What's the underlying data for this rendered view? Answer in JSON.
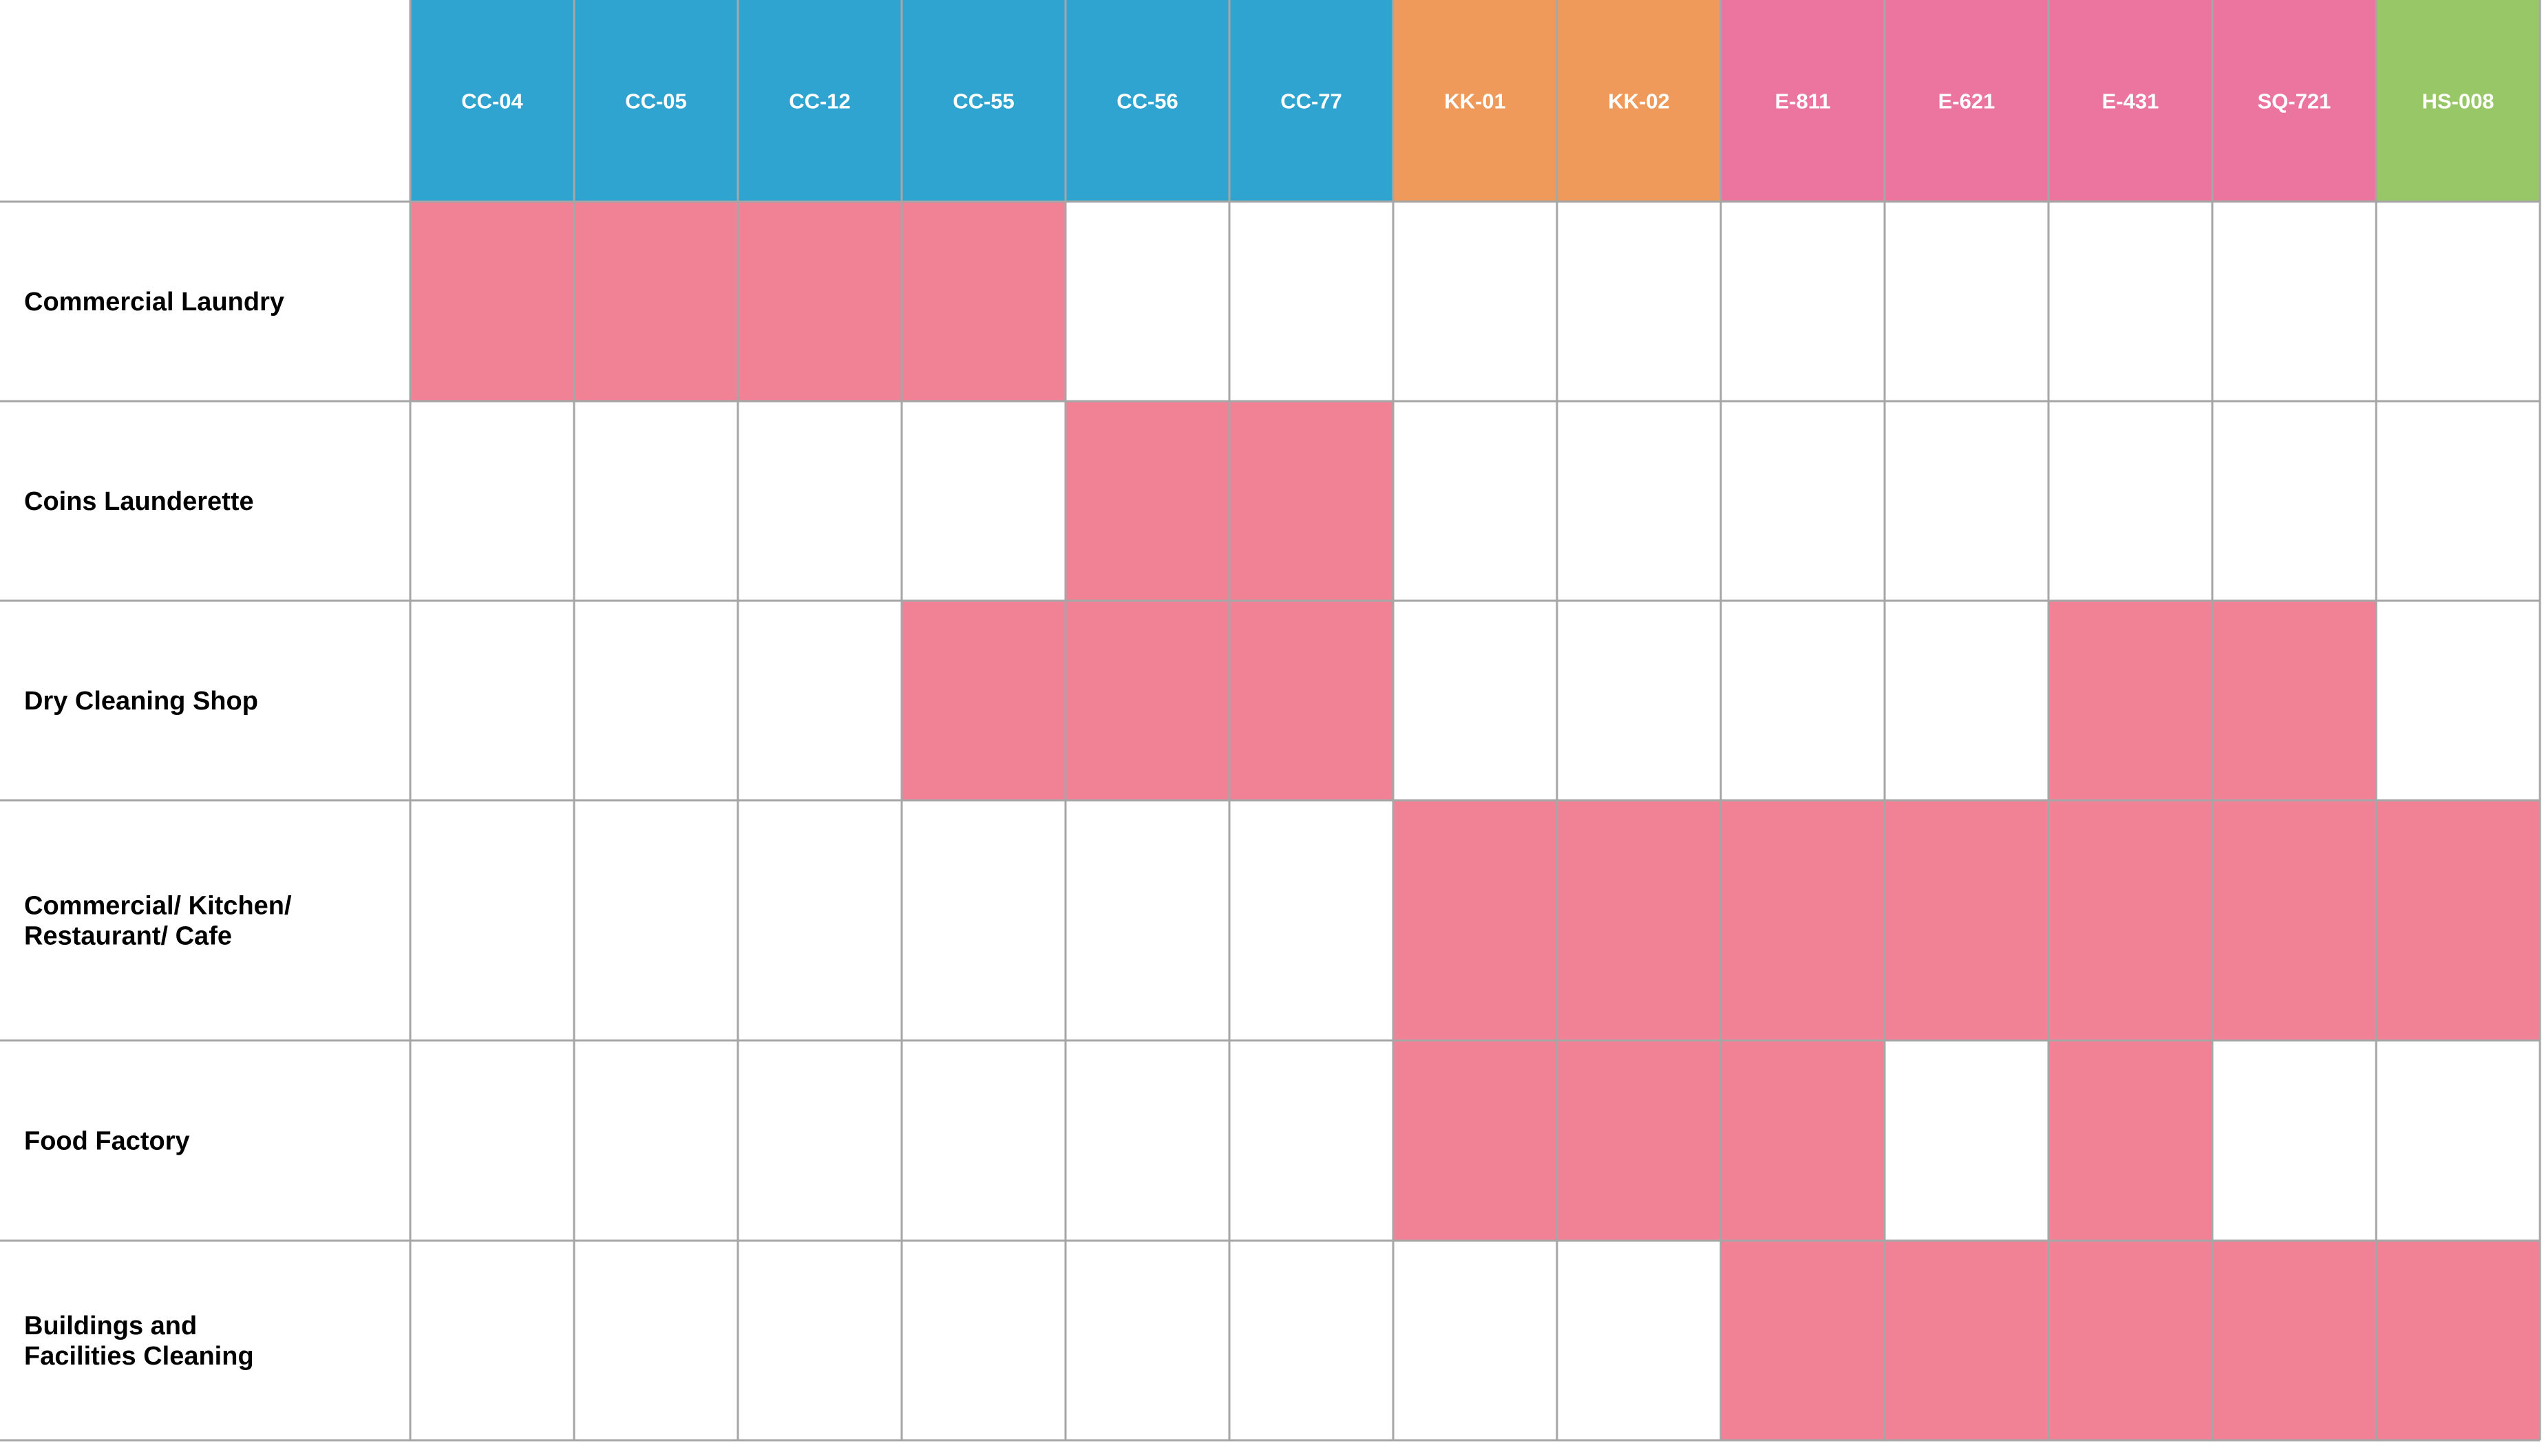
{
  "chart_data": {
    "type": "table",
    "title": "",
    "columns": [
      {
        "label": "CC-04",
        "group": "CC"
      },
      {
        "label": "CC-05",
        "group": "CC"
      },
      {
        "label": "CC-12",
        "group": "CC"
      },
      {
        "label": "CC-55",
        "group": "CC"
      },
      {
        "label": "CC-56",
        "group": "CC"
      },
      {
        "label": "CC-77",
        "group": "CC"
      },
      {
        "label": "KK-01",
        "group": "KK"
      },
      {
        "label": "KK-02",
        "group": "KK"
      },
      {
        "label": "E-811",
        "group": "E"
      },
      {
        "label": "E-621",
        "group": "E"
      },
      {
        "label": "E-431",
        "group": "E"
      },
      {
        "label": "SQ-721",
        "group": "E"
      },
      {
        "label": "HS-008",
        "group": "HS"
      }
    ],
    "rows": [
      {
        "lines": [
          "Commercial Laundry"
        ],
        "marked": [
          1,
          1,
          1,
          1,
          0,
          0,
          0,
          0,
          0,
          0,
          0,
          0,
          0
        ]
      },
      {
        "lines": [
          "Coins Launderette"
        ],
        "marked": [
          0,
          0,
          0,
          0,
          1,
          1,
          0,
          0,
          0,
          0,
          0,
          0,
          0
        ]
      },
      {
        "lines": [
          "Dry Cleaning Shop"
        ],
        "marked": [
          0,
          0,
          0,
          1,
          1,
          1,
          0,
          0,
          0,
          0,
          1,
          1,
          0
        ]
      },
      {
        "lines": [
          "Commercial/ Kitchen/",
          "Restaurant/ Cafe"
        ],
        "marked": [
          0,
          0,
          0,
          0,
          0,
          0,
          1,
          1,
          1,
          1,
          1,
          1,
          1
        ]
      },
      {
        "lines": [
          "Food Factory"
        ],
        "marked": [
          0,
          0,
          0,
          0,
          0,
          0,
          1,
          1,
          1,
          0,
          1,
          0,
          0
        ]
      },
      {
        "lines": [
          "Buildings and",
          "Facilities Cleaning"
        ],
        "marked": [
          0,
          0,
          0,
          0,
          0,
          0,
          0,
          0,
          1,
          1,
          1,
          1,
          1
        ]
      }
    ],
    "colors": {
      "group_CC": "#2fa4d0",
      "group_KK": "#ef9a5a",
      "group_E": "#eb759f",
      "group_HS": "#98c767",
      "marked_cell": "#f18295",
      "empty_cell": "#ffffff",
      "grid_line": "#a6a6a6",
      "header_text": "#ffffff",
      "row_label_text": "#000000"
    }
  }
}
